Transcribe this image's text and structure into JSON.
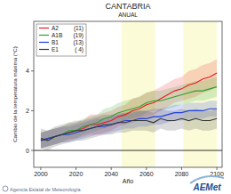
{
  "chart_data": {
    "type": "line",
    "title": "CANTABRIA",
    "subtitle": "ANUAL",
    "x_label": "Año",
    "y_label": "Cambio de la temperatura máxima (°C)",
    "x": [
      2000,
      2004,
      2008,
      2012,
      2016,
      2020,
      2024,
      2028,
      2032,
      2036,
      2040,
      2044,
      2048,
      2052,
      2056,
      2060,
      2064,
      2068,
      2072,
      2076,
      2080,
      2084,
      2088,
      2092,
      2096,
      2100
    ],
    "xlim": [
      1996,
      2103
    ],
    "ylim": [
      -0.85,
      6.5
    ],
    "xticks": [
      2000,
      2020,
      2040,
      2060,
      2080,
      2100
    ],
    "yticks": [
      0,
      2,
      4
    ],
    "reference_line": 0,
    "highlight_periods": [
      [
        2046,
        2065
      ],
      [
        2081,
        2100
      ]
    ],
    "legend": "top-left",
    "series": [
      {
        "name": "A2",
        "count_label": "(11)",
        "color": "#e8191d",
        "values": [
          0.5,
          0.6,
          0.7,
          0.8,
          0.9,
          1.0,
          1.1,
          1.3,
          1.3,
          1.4,
          1.5,
          1.7,
          1.8,
          2.0,
          2.1,
          2.3,
          2.4,
          2.6,
          2.8,
          3.0,
          3.1,
          3.3,
          3.4,
          3.6,
          3.7,
          3.9
        ],
        "lower": [
          0.1,
          0.2,
          0.3,
          0.4,
          0.5,
          0.6,
          0.7,
          0.8,
          0.8,
          0.9,
          1.0,
          1.2,
          1.3,
          1.4,
          1.5,
          1.7,
          1.8,
          2.0,
          2.2,
          2.4,
          2.5,
          2.6,
          2.7,
          2.9,
          3.0,
          3.2
        ],
        "upper": [
          0.9,
          1.0,
          1.1,
          1.2,
          1.3,
          1.4,
          1.5,
          1.8,
          1.8,
          1.9,
          2.0,
          2.2,
          2.3,
          2.6,
          2.7,
          2.9,
          3.0,
          3.2,
          3.4,
          3.6,
          3.7,
          4.0,
          4.1,
          4.3,
          4.4,
          4.6
        ]
      },
      {
        "name": "A1B",
        "count_label": "(19)",
        "color": "#2ca02c",
        "values": [
          0.5,
          0.6,
          0.7,
          0.8,
          1.0,
          1.0,
          1.2,
          1.3,
          1.4,
          1.6,
          1.7,
          1.9,
          2.0,
          2.1,
          2.2,
          2.4,
          2.5,
          2.5,
          2.6,
          2.7,
          2.8,
          2.9,
          3.0,
          3.0,
          3.1,
          3.2
        ],
        "lower": [
          0.1,
          0.2,
          0.3,
          0.4,
          0.6,
          0.6,
          0.8,
          0.9,
          1.0,
          1.1,
          1.2,
          1.4,
          1.5,
          1.6,
          1.7,
          1.9,
          2.0,
          2.0,
          2.1,
          2.2,
          2.3,
          2.4,
          2.5,
          2.5,
          2.6,
          2.7
        ],
        "upper": [
          0.9,
          1.0,
          1.1,
          1.2,
          1.4,
          1.4,
          1.6,
          1.7,
          1.8,
          2.1,
          2.2,
          2.4,
          2.5,
          2.6,
          2.7,
          2.9,
          3.0,
          3.0,
          3.1,
          3.2,
          3.3,
          3.4,
          3.5,
          3.5,
          3.6,
          3.7
        ]
      },
      {
        "name": "B1",
        "count_label": "(13)",
        "color": "#1f3fd8",
        "values": [
          0.5,
          0.6,
          0.7,
          0.8,
          0.8,
          0.9,
          1.0,
          1.1,
          1.2,
          1.2,
          1.3,
          1.4,
          1.5,
          1.5,
          1.6,
          1.6,
          1.7,
          1.7,
          1.8,
          1.9,
          1.9,
          2.0,
          2.0,
          2.0,
          2.1,
          2.1
        ],
        "lower": [
          0.1,
          0.2,
          0.3,
          0.4,
          0.4,
          0.5,
          0.6,
          0.7,
          0.8,
          0.8,
          0.9,
          1.0,
          1.1,
          1.1,
          1.2,
          1.2,
          1.3,
          1.3,
          1.4,
          1.5,
          1.5,
          1.6,
          1.6,
          1.6,
          1.7,
          1.7
        ],
        "upper": [
          0.9,
          1.0,
          1.1,
          1.2,
          1.2,
          1.3,
          1.4,
          1.5,
          1.6,
          1.6,
          1.7,
          1.8,
          1.9,
          1.9,
          2.0,
          2.0,
          2.1,
          2.1,
          2.2,
          2.3,
          2.3,
          2.4,
          2.4,
          2.4,
          2.5,
          2.5
        ]
      },
      {
        "name": "E1",
        "count_label": "( 4)",
        "color": "#333333",
        "values": [
          0.6,
          0.5,
          0.7,
          0.8,
          0.9,
          1.0,
          1.0,
          1.1,
          1.2,
          1.3,
          1.3,
          1.4,
          1.4,
          1.5,
          1.5,
          1.5,
          1.4,
          1.6,
          1.5,
          1.5,
          1.6,
          1.5,
          1.6,
          1.5,
          1.5,
          1.6
        ],
        "lower": [
          0.1,
          0.0,
          0.2,
          0.3,
          0.4,
          0.5,
          0.5,
          0.6,
          0.7,
          0.8,
          0.8,
          0.9,
          0.9,
          1.0,
          1.0,
          1.0,
          0.9,
          1.1,
          1.0,
          1.0,
          1.1,
          1.0,
          1.1,
          1.0,
          1.0,
          1.1
        ],
        "upper": [
          1.1,
          1.0,
          1.2,
          1.3,
          1.4,
          1.5,
          1.5,
          1.6,
          1.7,
          1.8,
          1.8,
          1.9,
          1.9,
          2.0,
          2.0,
          2.0,
          1.9,
          2.1,
          2.0,
          2.0,
          2.1,
          2.0,
          2.1,
          2.0,
          2.0,
          2.1
        ]
      }
    ],
    "source": "Agencia Estatal de Meteorología",
    "logo": "AEMet"
  }
}
